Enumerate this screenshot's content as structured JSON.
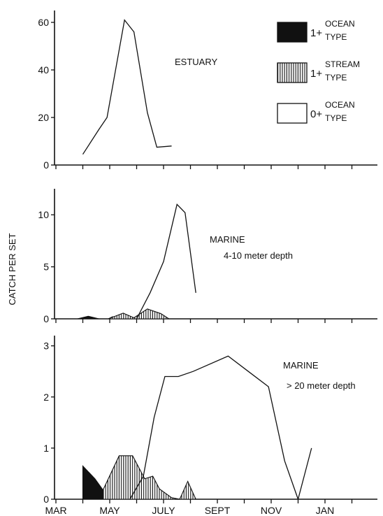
{
  "chart_data": {
    "type": "area",
    "ylabel": "CATCH PER SET",
    "x_tick_labels": [
      "MAR",
      "MAY",
      "JULY",
      "SEPT",
      "NOV",
      "JAN"
    ],
    "legend": [
      {
        "key": "ocean1",
        "prefix": "1+",
        "line1": "OCEAN",
        "line2": "TYPE",
        "fill": "solid-black"
      },
      {
        "key": "stream1",
        "prefix": "1+",
        "line1": "STREAM",
        "line2": "TYPE",
        "fill": "vertical-hatch"
      },
      {
        "key": "ocean0",
        "prefix": "0+",
        "line1": "OCEAN",
        "line2": "TYPE",
        "fill": "open"
      }
    ],
    "panels": [
      {
        "annotation": [
          "ESTUARY"
        ],
        "ylim": [
          0,
          65
        ],
        "yticks": [
          0,
          20,
          40,
          60
        ],
        "series": {
          "ocean0": {
            "x": [
              3.0,
              3.6,
              3.9,
              4.55,
              4.9,
              5.4,
              5.75,
              6.3
            ],
            "y": [
              4.5,
              15,
              20,
              61,
              56,
              22,
              7.5,
              8
            ]
          }
        }
      },
      {
        "annotation": [
          "MARINE",
          "4-10 meter depth"
        ],
        "ylim": [
          0,
          12.5
        ],
        "yticks": [
          0,
          5,
          10
        ],
        "series": {
          "ocean1": {
            "x": [
              2.8,
              3.2,
              3.6,
              3.95,
              4.1,
              4.5,
              4.9
            ],
            "y": [
              0,
              0.25,
              0,
              0,
              0.2,
              0.1,
              0
            ]
          },
          "stream1": {
            "x": [
              3.95,
              4.5,
              4.9,
              5.4,
              5.9,
              6.2
            ],
            "y": [
              0,
              0.55,
              0.1,
              0.95,
              0.5,
              0
            ]
          },
          "ocean0": {
            "x": [
              5.0,
              5.5,
              6.0,
              6.5,
              6.8,
              7.2
            ],
            "y": [
              0,
              2.5,
              5.5,
              11,
              10.2,
              2.5
            ]
          }
        }
      },
      {
        "annotation": [
          "MARINE",
          "> 20 meter depth"
        ],
        "ylim": [
          0,
          3.2
        ],
        "yticks": [
          0,
          1,
          2,
          3
        ],
        "series": {
          "ocean1": {
            "x": [
              3.0,
              3.45,
              3.75,
              4.35,
              4.75,
              5.0
            ],
            "y": [
              0.65,
              0.4,
              0.18,
              0.8,
              0.3,
              0
            ]
          },
          "stream1": {
            "x": [
              3.75,
              4.35,
              4.85,
              5.3,
              5.6,
              5.85,
              6.3,
              6.6,
              6.9,
              7.2,
              7.5
            ],
            "y": [
              0.18,
              0.85,
              0.85,
              0.4,
              0.45,
              0.2,
              0.03,
              0,
              0.35,
              0,
              0
            ]
          },
          "ocean0": {
            "x": [
              4.75,
              5.25,
              5.65,
              6.05,
              6.35,
              6.55,
              7.1,
              8.4,
              9.15,
              9.9,
              10.5,
              11.0,
              11.5
            ],
            "y": [
              0,
              0.45,
              1.6,
              2.4,
              2.4,
              2.4,
              2.5,
              2.8,
              2.5,
              2.2,
              0.75,
              0,
              1.0
            ]
          }
        }
      }
    ]
  }
}
